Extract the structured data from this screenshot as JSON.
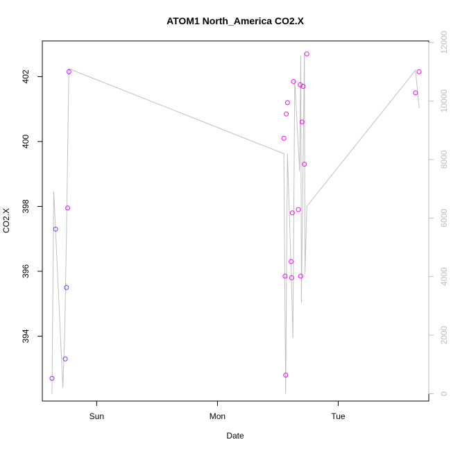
{
  "chart_data": {
    "type": "scatter",
    "title": "ATOM1 North_America CO2.X",
    "xlabel": "Date",
    "ylabel": "CO2.X",
    "x_ticks": [
      {
        "label": "Sun",
        "value": 1.0
      },
      {
        "label": "Mon",
        "value": 2.0
      },
      {
        "label": "Tue",
        "value": 3.0
      }
    ],
    "xlim": [
      0.55,
      3.75
    ],
    "ylim_left": [
      392.0,
      403.1
    ],
    "yticks_left": [
      394,
      396,
      398,
      400,
      402
    ],
    "ylim_right": [
      -250,
      12050
    ],
    "yticks_right": [
      0,
      2000,
      4000,
      6000,
      8000,
      10000,
      12000
    ],
    "colors": {
      "line": "#c0c0c0",
      "axis": "#000000",
      "right_axis": "#bdbdbd",
      "point_low": "#5a3cff",
      "point_high": "#ff00ff"
    },
    "points": [
      {
        "x": 0.63,
        "y": 392.7,
        "c": 0.35
      },
      {
        "x": 0.66,
        "y": 397.3,
        "c": 0.25
      },
      {
        "x": 0.74,
        "y": 393.3,
        "c": 0.2
      },
      {
        "x": 0.75,
        "y": 395.5,
        "c": 0.25
      },
      {
        "x": 0.76,
        "y": 397.95,
        "c": 0.55
      },
      {
        "x": 0.77,
        "y": 402.15,
        "c": 0.6
      },
      {
        "x": 2.55,
        "y": 400.1,
        "c": 0.95
      },
      {
        "x": 2.56,
        "y": 395.85,
        "c": 0.95
      },
      {
        "x": 2.565,
        "y": 392.8,
        "c": 0.95
      },
      {
        "x": 2.57,
        "y": 400.85,
        "c": 0.95
      },
      {
        "x": 2.58,
        "y": 401.2,
        "c": 0.95
      },
      {
        "x": 2.61,
        "y": 396.3,
        "c": 0.95
      },
      {
        "x": 2.615,
        "y": 395.8,
        "c": 0.95
      },
      {
        "x": 2.62,
        "y": 397.8,
        "c": 0.95
      },
      {
        "x": 2.63,
        "y": 401.85,
        "c": 0.95
      },
      {
        "x": 2.67,
        "y": 397.9,
        "c": 0.95
      },
      {
        "x": 2.685,
        "y": 401.75,
        "c": 0.95
      },
      {
        "x": 2.69,
        "y": 395.85,
        "c": 0.95
      },
      {
        "x": 2.7,
        "y": 400.6,
        "c": 0.95
      },
      {
        "x": 2.71,
        "y": 401.7,
        "c": 0.95
      },
      {
        "x": 2.72,
        "y": 399.3,
        "c": 0.95
      },
      {
        "x": 2.74,
        "y": 402.7,
        "c": 0.95
      },
      {
        "x": 3.64,
        "y": 401.5,
        "c": 0.95
      },
      {
        "x": 3.67,
        "y": 402.15,
        "c": 0.95
      }
    ],
    "line_series": [
      {
        "x": 0.63,
        "y": 0
      },
      {
        "x": 0.645,
        "y": 6900
      },
      {
        "x": 0.655,
        "y": 6000
      },
      {
        "x": 0.7,
        "y": 2000
      },
      {
        "x": 0.72,
        "y": 200
      },
      {
        "x": 0.735,
        "y": 2000
      },
      {
        "x": 0.75,
        "y": 5500
      },
      {
        "x": 0.77,
        "y": 11100
      },
      {
        "x": 2.55,
        "y": 8200
      },
      {
        "x": 2.565,
        "y": 0
      },
      {
        "x": 2.58,
        "y": 8200
      },
      {
        "x": 2.61,
        "y": 4200
      },
      {
        "x": 2.625,
        "y": 1900
      },
      {
        "x": 2.64,
        "y": 10700
      },
      {
        "x": 2.68,
        "y": 7600
      },
      {
        "x": 2.69,
        "y": 11550
      },
      {
        "x": 2.695,
        "y": 3100
      },
      {
        "x": 2.72,
        "y": 11650
      },
      {
        "x": 2.725,
        "y": 4100
      },
      {
        "x": 2.74,
        "y": 6400
      },
      {
        "x": 3.64,
        "y": 11050
      },
      {
        "x": 3.67,
        "y": 9750
      }
    ]
  }
}
